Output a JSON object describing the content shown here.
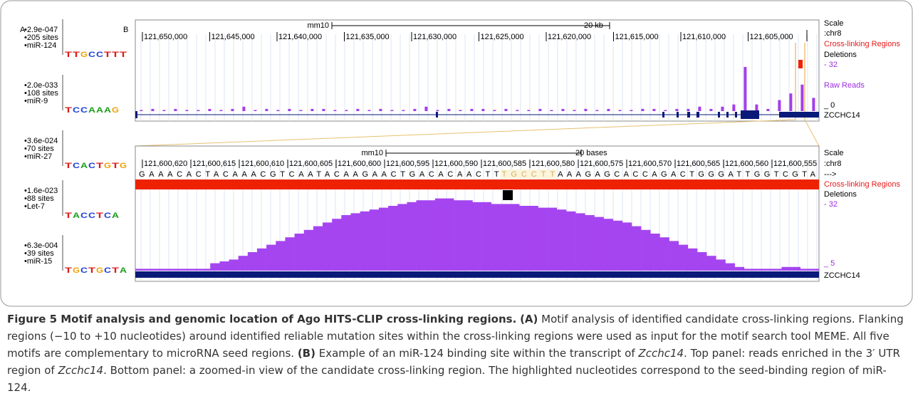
{
  "panel_a": {
    "label": "A",
    "motifs": [
      {
        "evalue": "•2.9e-047",
        "sites": "•205 sites",
        "mirna": "•miR-124",
        "logo": [
          "T",
          "T",
          "G",
          "C",
          "C",
          "T",
          "T",
          "T"
        ]
      },
      {
        "evalue": "•2.0e-033",
        "sites": "•108 sites",
        "mirna": "•miR-9",
        "logo": [
          "T",
          "C",
          "C",
          "A",
          "A",
          "A",
          "G"
        ]
      },
      {
        "evalue": "•3.6e-024",
        "sites": "•70 sites",
        "mirna": "•miR-27",
        "logo": [
          "T",
          "C",
          "A",
          "C",
          "T",
          "G",
          "T",
          "G"
        ]
      },
      {
        "evalue": "•1.6e-023",
        "sites": "•88 sites",
        "mirna": "•Let-7",
        "logo": [
          "T",
          "A",
          "C",
          "C",
          "T",
          "C",
          "A"
        ]
      },
      {
        "evalue": "•6.3e-004",
        "sites": "•39 sites",
        "mirna": "•miR-15",
        "logo": [
          "T",
          "G",
          "C",
          "T",
          "G",
          "C",
          "T",
          "A"
        ]
      }
    ]
  },
  "panel_b": {
    "label": "B",
    "overview": {
      "assembly": "mm10",
      "scale_label": "20 kb",
      "coordinates": [
        "121,650,000",
        "121,645,000",
        "121,640,000",
        "121,635,000",
        "121,630,000",
        "121,625,000",
        "121,620,000",
        "121,615,000",
        "121,610,000",
        "121,605,000"
      ],
      "track_labels": {
        "scale": "Scale",
        "chrom": ":chr8",
        "crosslink": "Cross-linking Regions",
        "deletions": "Deletions",
        "max": "- 32",
        "reads": "Raw Reads",
        "min": "_ 0",
        "gene": "ZCCHC14"
      },
      "coverage": [
        0.5,
        1,
        0.5,
        1,
        0.5,
        0.5,
        1,
        0.5,
        1,
        2,
        0.5,
        1,
        0.5,
        1,
        0.5,
        1,
        1,
        0.5,
        0.5,
        1,
        0.5,
        1,
        0.5,
        0.5,
        1,
        2,
        0.5,
        1,
        0.5,
        1,
        1,
        0.5,
        1,
        0.5,
        0.5,
        1,
        0.5,
        1,
        0.5,
        1,
        0.5,
        1,
        0.5,
        0.5,
        1,
        1,
        0.5,
        1,
        1,
        2,
        1,
        2,
        3,
        20,
        3,
        1,
        5,
        8,
        12,
        6
      ]
    },
    "zoom": {
      "assembly": "mm10",
      "scale_label": "20 bases",
      "coordinates": [
        "121,600,620",
        "121,600,615",
        "121,600,610",
        "121,600,605",
        "121,600,600",
        "121,600,595",
        "121,600,590",
        "121,600,585",
        "121,600,580",
        "121,600,575",
        "121,600,570",
        "121,600,565",
        "121,600,560",
        "121,600,555"
      ],
      "sequence_before": "GAAACACTACAAACGTCAATACAAGAACTGACACAACTT",
      "highlight": "TGCCTT",
      "sequence_after": "AAAGAGCACCAGACTGGGATTGGTCGTA",
      "track_labels": {
        "scale": "Scale",
        "chrom": ":chr8",
        "strand": "--->",
        "crosslink": "Cross-linking Regions",
        "deletions": "Deletions",
        "max": "- 32",
        "min": "_ 5",
        "gene": "ZCCHC14"
      },
      "coverage": [
        0.5,
        0.5,
        0.5,
        0.5,
        0.5,
        0.5,
        0.5,
        0.5,
        2,
        2.5,
        3,
        4,
        5,
        6,
        7,
        8,
        9,
        10,
        11,
        12,
        13,
        14,
        15,
        15.5,
        16,
        16.5,
        17,
        17.5,
        18,
        18.5,
        19,
        19,
        19.5,
        19.5,
        19,
        19,
        18.5,
        18.5,
        18,
        18,
        18,
        17.5,
        17.5,
        17,
        17,
        16.5,
        16,
        15.5,
        15,
        14.5,
        14,
        13.5,
        13,
        12,
        11,
        10,
        9,
        8,
        7,
        6,
        5,
        4,
        3,
        2,
        1,
        0.5,
        0.5,
        0.5,
        0.5,
        1,
        1,
        0.5,
        0.5
      ]
    }
  },
  "caption": [
    {
      "style": "bold",
      "text": "Figure 5 Motif analysis and genomic location of Ago HITS-CLIP cross-linking regions."
    },
    {
      "style": "plain",
      "text": " "
    },
    {
      "style": "bold",
      "text": "(A)"
    },
    {
      "style": "plain",
      "text": " Motif analysis of identified candidate cross-linking regions. Flanking regions (−10 to +10 nucleotides) around identified reliable mutation sites within the cross-linking regions were used as input for the motif search tool MEME. All five motifs are complementary to microRNA seed regions. "
    },
    {
      "style": "bold",
      "text": "(B)"
    },
    {
      "style": "plain",
      "text": " Example of an miR-124 binding site within the transcript of "
    },
    {
      "style": "italic",
      "text": "Zcchc14"
    },
    {
      "style": "plain",
      "text": ". Top panel: reads enriched in the 3′ UTR region of "
    },
    {
      "style": "italic",
      "text": "Zcchc14"
    },
    {
      "style": "plain",
      "text": ". Bottom panel: a zoomed-in view of the candidate cross-linking region. The highlighted nucleotides correspond to the seed-binding region of miR-124."
    }
  ]
}
